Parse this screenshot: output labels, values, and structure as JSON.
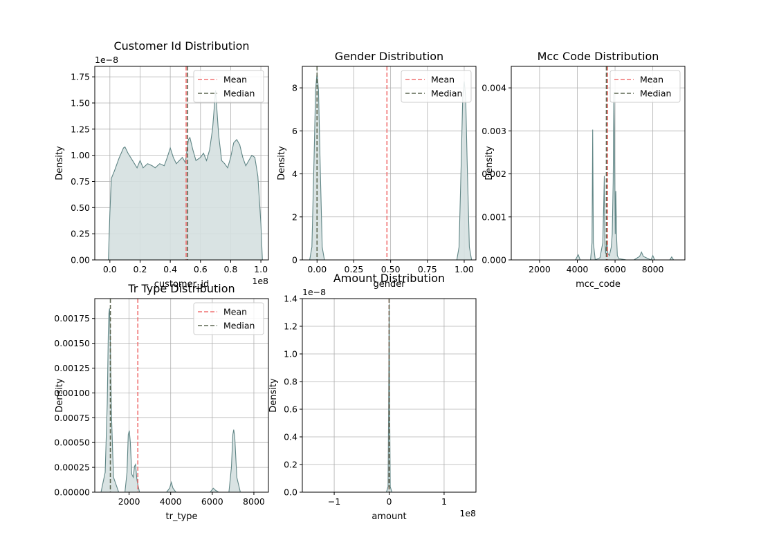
{
  "colors": {
    "fill": "#d5e0e0",
    "line": "#5f8585",
    "mean": "#f07070",
    "median": "#5c6650",
    "grid": "#b0b0b0"
  },
  "legend": {
    "mean": "Mean",
    "median": "Median"
  },
  "chart_data": [
    {
      "type": "area",
      "title": "Customer Id Distribution",
      "xlabel": "customer_id",
      "ylabel": "Density",
      "xlim": [
        -0.1,
        1.05
      ],
      "ylim": [
        0,
        1.85
      ],
      "x_scale_label": "1e8",
      "y_scale_label": "1e−8",
      "xticks": [
        0.0,
        0.2,
        0.4,
        0.6,
        0.8,
        1.0
      ],
      "xtick_labels": [
        "0.0",
        "0.2",
        "0.4",
        "0.6",
        "0.8",
        "1.0"
      ],
      "yticks": [
        0.0,
        0.25,
        0.5,
        0.75,
        1.0,
        1.25,
        1.5,
        1.75
      ],
      "ytick_labels": [
        "0.00",
        "0.25",
        "0.50",
        "0.75",
        "1.00",
        "1.25",
        "1.50",
        "1.75"
      ],
      "mean": 0.505,
      "median": 0.515,
      "legend": true,
      "density": {
        "x": [
          -0.01,
          0.0,
          0.01,
          0.03,
          0.06,
          0.09,
          0.1,
          0.12,
          0.15,
          0.18,
          0.2,
          0.22,
          0.25,
          0.28,
          0.3,
          0.33,
          0.36,
          0.38,
          0.4,
          0.42,
          0.44,
          0.46,
          0.48,
          0.5,
          0.52,
          0.53,
          0.55,
          0.57,
          0.6,
          0.62,
          0.64,
          0.66,
          0.68,
          0.7,
          0.72,
          0.74,
          0.76,
          0.78,
          0.8,
          0.82,
          0.84,
          0.86,
          0.88,
          0.9,
          0.92,
          0.94,
          0.96,
          0.98,
          1.0,
          1.01
        ],
        "y": [
          0.0,
          0.45,
          0.78,
          0.85,
          0.97,
          1.07,
          1.08,
          1.02,
          0.95,
          0.88,
          0.95,
          0.88,
          0.92,
          0.9,
          0.88,
          0.92,
          0.9,
          0.98,
          1.07,
          0.98,
          0.92,
          0.95,
          0.98,
          0.93,
          1.15,
          1.17,
          1.05,
          0.95,
          0.98,
          1.02,
          0.95,
          1.05,
          1.25,
          1.62,
          1.2,
          0.95,
          0.92,
          0.88,
          0.98,
          1.12,
          1.15,
          1.1,
          0.98,
          0.9,
          0.95,
          1.0,
          0.98,
          0.8,
          0.35,
          0.0
        ]
      }
    },
    {
      "type": "area",
      "title": "Gender Distribution",
      "xlabel": "gender",
      "ylabel": "Density",
      "xlim": [
        -0.1,
        1.08
      ],
      "ylim": [
        0,
        9.0
      ],
      "x_scale_label": "",
      "y_scale_label": "",
      "xticks": [
        0.0,
        0.25,
        0.5,
        0.75,
        1.0
      ],
      "xtick_labels": [
        "0.00",
        "0.25",
        "0.50",
        "0.75",
        "1.00"
      ],
      "yticks": [
        0,
        2,
        4,
        6,
        8
      ],
      "ytick_labels": [
        "0",
        "2",
        "4",
        "6",
        "8"
      ],
      "mean": 0.475,
      "median": 0.0,
      "legend": true,
      "density": {
        "x": [
          -0.05,
          -0.035,
          -0.02,
          -0.01,
          0.0,
          0.01,
          0.02,
          0.035,
          0.05,
          0.1,
          0.5,
          0.95,
          0.965,
          0.98,
          0.99,
          1.0,
          1.01,
          1.02,
          1.035,
          1.05
        ],
        "y": [
          0.0,
          0.6,
          4.8,
          7.9,
          8.7,
          7.9,
          4.8,
          0.6,
          0.0,
          0.0,
          0.0,
          0.0,
          0.6,
          4.6,
          7.6,
          8.3,
          7.6,
          4.6,
          0.6,
          0.0
        ]
      }
    },
    {
      "type": "area",
      "title": "Mcc Code Distribution",
      "xlabel": "mcc_code",
      "ylabel": "Density",
      "xlim": [
        500,
        9700
      ],
      "ylim": [
        0,
        0.0045
      ],
      "x_scale_label": "",
      "y_scale_label": "",
      "xticks": [
        2000,
        4000,
        6000,
        8000
      ],
      "xtick_labels": [
        "2000",
        "4000",
        "6000",
        "8000"
      ],
      "yticks": [
        0.0,
        0.001,
        0.002,
        0.003,
        0.004
      ],
      "ytick_labels": [
        "0.000",
        "0.001",
        "0.002",
        "0.003",
        "0.004"
      ],
      "mean": 5600,
      "median": 5540,
      "legend": true,
      "density": {
        "x": [
          700,
          3900,
          4050,
          4150,
          4400,
          4700,
          4780,
          4814,
          4850,
          4950,
          5200,
          5350,
          5400,
          5430,
          5460,
          5500,
          5560,
          5620,
          5700,
          5800,
          5850,
          5900,
          5940,
          5980,
          6010,
          6040,
          6080,
          6120,
          6200,
          6600,
          7000,
          7300,
          7400,
          7500,
          7900,
          8000,
          8100,
          8900,
          9000,
          9100,
          9300
        ],
        "y": [
          0.0,
          0.0,
          0.00012,
          0.0,
          0.0,
          0.0,
          0.0004,
          0.00303,
          0.0004,
          0.0,
          5e-05,
          0.0004,
          0.0013,
          0.00195,
          0.0004,
          0.00015,
          0.00045,
          0.00015,
          0.0001,
          0.0003,
          0.0006,
          0.0018,
          0.0039,
          0.0022,
          0.0006,
          0.0016,
          0.00055,
          0.0001,
          3e-05,
          0.0,
          0.0,
          8e-05,
          0.00018,
          8e-05,
          0.0,
          0.0001,
          0.0,
          0.0,
          7e-05,
          0.0,
          0.0
        ]
      }
    },
    {
      "type": "area",
      "title": "Tr Type Distribution",
      "xlabel": "tr_type",
      "ylabel": "Density",
      "xlim": [
        350,
        8700
      ],
      "ylim": [
        0,
        0.00195
      ],
      "x_scale_label": "",
      "y_scale_label": "",
      "xticks": [
        2000,
        4000,
        6000,
        8000
      ],
      "xtick_labels": [
        "2000",
        "4000",
        "6000",
        "8000"
      ],
      "yticks": [
        0.0,
        0.00025,
        0.0005,
        0.00075,
        0.001,
        0.00125,
        0.0015,
        0.00175
      ],
      "ytick_labels": [
        "0.00000",
        "0.00025",
        "0.00050",
        "0.00075",
        "0.00100",
        "0.00125",
        "0.00150",
        "0.00175"
      ],
      "mean": 2420,
      "median": 1100,
      "legend": true,
      "density": {
        "x": [
          650,
          850,
          950,
          1000,
          1030,
          1060,
          1100,
          1150,
          1250,
          1500,
          1800,
          1900,
          1960,
          2010,
          2060,
          2130,
          2200,
          2260,
          2310,
          2380,
          2500,
          3800,
          3950,
          4030,
          4110,
          4250,
          5900,
          6050,
          6150,
          6300,
          6800,
          6920,
          6990,
          7030,
          7080,
          7180,
          7350,
          8400
        ],
        "y": [
          0.0,
          0.0002,
          0.0009,
          0.0016,
          0.0018,
          0.00185,
          0.0015,
          0.0008,
          0.00015,
          0.0,
          0.0,
          0.0002,
          0.00058,
          0.00062,
          0.0005,
          0.00018,
          0.00015,
          0.00026,
          0.00028,
          0.00012,
          0.0,
          0.0,
          4e-05,
          0.0001,
          4e-05,
          0.0,
          0.0,
          4e-05,
          2e-05,
          0.0,
          0.0,
          0.00025,
          0.00058,
          0.00063,
          0.00056,
          0.00015,
          0.0,
          0.0
        ]
      }
    },
    {
      "type": "area",
      "title": "Amount Distribution",
      "xlabel": "amount",
      "ylabel": "Density",
      "xlim": [
        -1.58,
        1.58
      ],
      "ylim": [
        0,
        1.4
      ],
      "x_scale_label": "1e8",
      "y_scale_label": "1e−8",
      "xticks": [
        -1,
        0,
        1
      ],
      "xtick_labels": [
        "−1",
        "0",
        "1"
      ],
      "yticks": [
        0.0,
        0.2,
        0.4,
        0.6,
        0.8,
        1.0,
        1.2,
        1.4
      ],
      "ytick_labels": [
        "0.0",
        "0.2",
        "0.4",
        "0.6",
        "0.8",
        "1.0",
        "1.2",
        "1.4"
      ],
      "mean": 0.0,
      "median": 0.0,
      "legend": false,
      "density": {
        "x": [
          -1.45,
          -0.05,
          -0.02,
          -0.01,
          0.0,
          0.01,
          0.02,
          0.05,
          1.45
        ],
        "y": [
          0.0,
          0.0,
          0.04,
          0.6,
          1.36,
          0.6,
          0.04,
          0.0,
          0.0
        ]
      }
    }
  ]
}
